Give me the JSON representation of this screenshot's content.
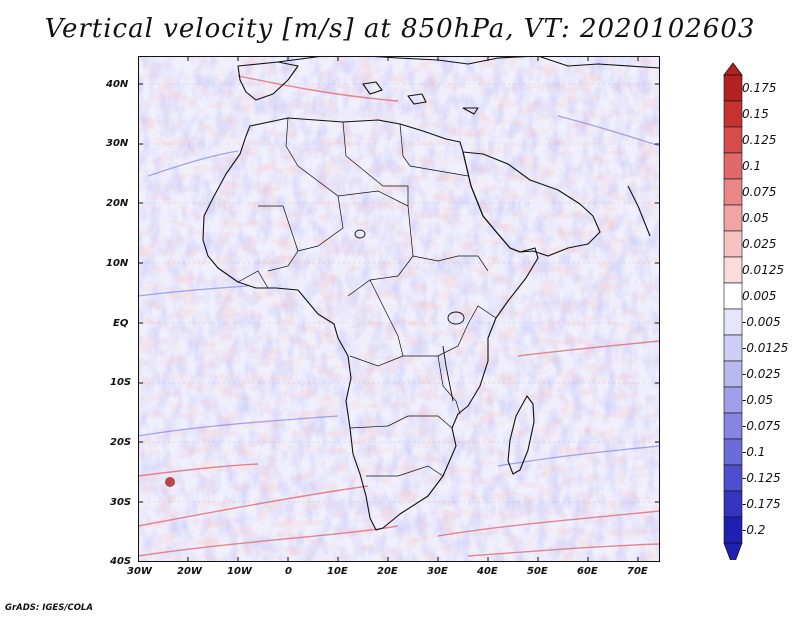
{
  "title": "Vertical velocity [m/s] at 850hPa, VT: 2020102603",
  "credit": "GrADS: IGES/COLA",
  "map": {
    "region": "Africa",
    "variable": "vertical velocity",
    "level": "850hPa",
    "units": "m/s",
    "lat_ticks": [
      "40N",
      "30N",
      "20N",
      "10N",
      "EQ",
      "10S",
      "20S",
      "30S",
      "40S"
    ],
    "lon_ticks": [
      "30W",
      "20W",
      "10W",
      "0",
      "10E",
      "20E",
      "30E",
      "40E",
      "50E",
      "60E",
      "70E"
    ]
  },
  "colorbar": {
    "labels": [
      "0.175",
      "0.15",
      "0.125",
      "0.1",
      "0.075",
      "0.05",
      "0.025",
      "0.0125",
      "0.005",
      "-0.005",
      "-0.0125",
      "-0.025",
      "-0.05",
      "-0.075",
      "-0.1",
      "-0.125",
      "-0.175",
      "-0.2"
    ],
    "colors": [
      "#b22222",
      "#c63232",
      "#d64c4c",
      "#e06a6a",
      "#e98787",
      "#f0a4a4",
      "#f6c2c2",
      "#fbdcdc",
      "#ffffff",
      "#e6e6fb",
      "#cfcff5",
      "#b9b9f0",
      "#a0a0ea",
      "#8686e2",
      "#6b6bd9",
      "#4f4fce",
      "#3535c2",
      "#1f1fb0"
    ]
  }
}
